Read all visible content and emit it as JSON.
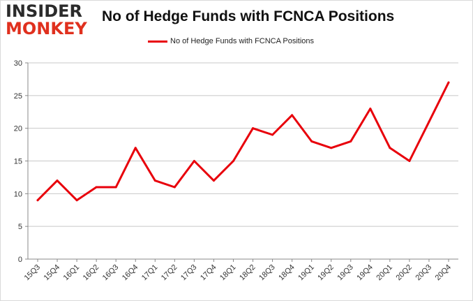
{
  "logo": {
    "line1": "INSIDER",
    "line2": "MONKEY"
  },
  "chart_data": {
    "type": "line",
    "title": "No of Hedge Funds with FCNCA Positions",
    "xlabel": "",
    "ylabel": "",
    "categories": [
      "15Q3",
      "15Q4",
      "16Q1",
      "16Q2",
      "16Q3",
      "16Q4",
      "17Q1",
      "17Q2",
      "17Q3",
      "17Q4",
      "18Q1",
      "18Q2",
      "18Q3",
      "18Q4",
      "19Q1",
      "19Q2",
      "19Q3",
      "19Q4",
      "20Q1",
      "20Q2",
      "20Q3",
      "20Q4"
    ],
    "series": [
      {
        "name": "No of Hedge Funds with FCNCA Positions",
        "values": [
          9,
          12,
          9,
          11,
          11,
          17,
          12,
          11,
          15,
          12,
          15,
          20,
          19,
          22,
          18,
          17,
          18,
          23,
          17,
          15,
          21,
          27
        ],
        "color": "#e8000b"
      }
    ],
    "ylim": [
      0,
      30
    ],
    "yticks": [
      0,
      5,
      10,
      15,
      20,
      25,
      30
    ],
    "grid": "horizontal",
    "legend_position": "top-center"
  }
}
